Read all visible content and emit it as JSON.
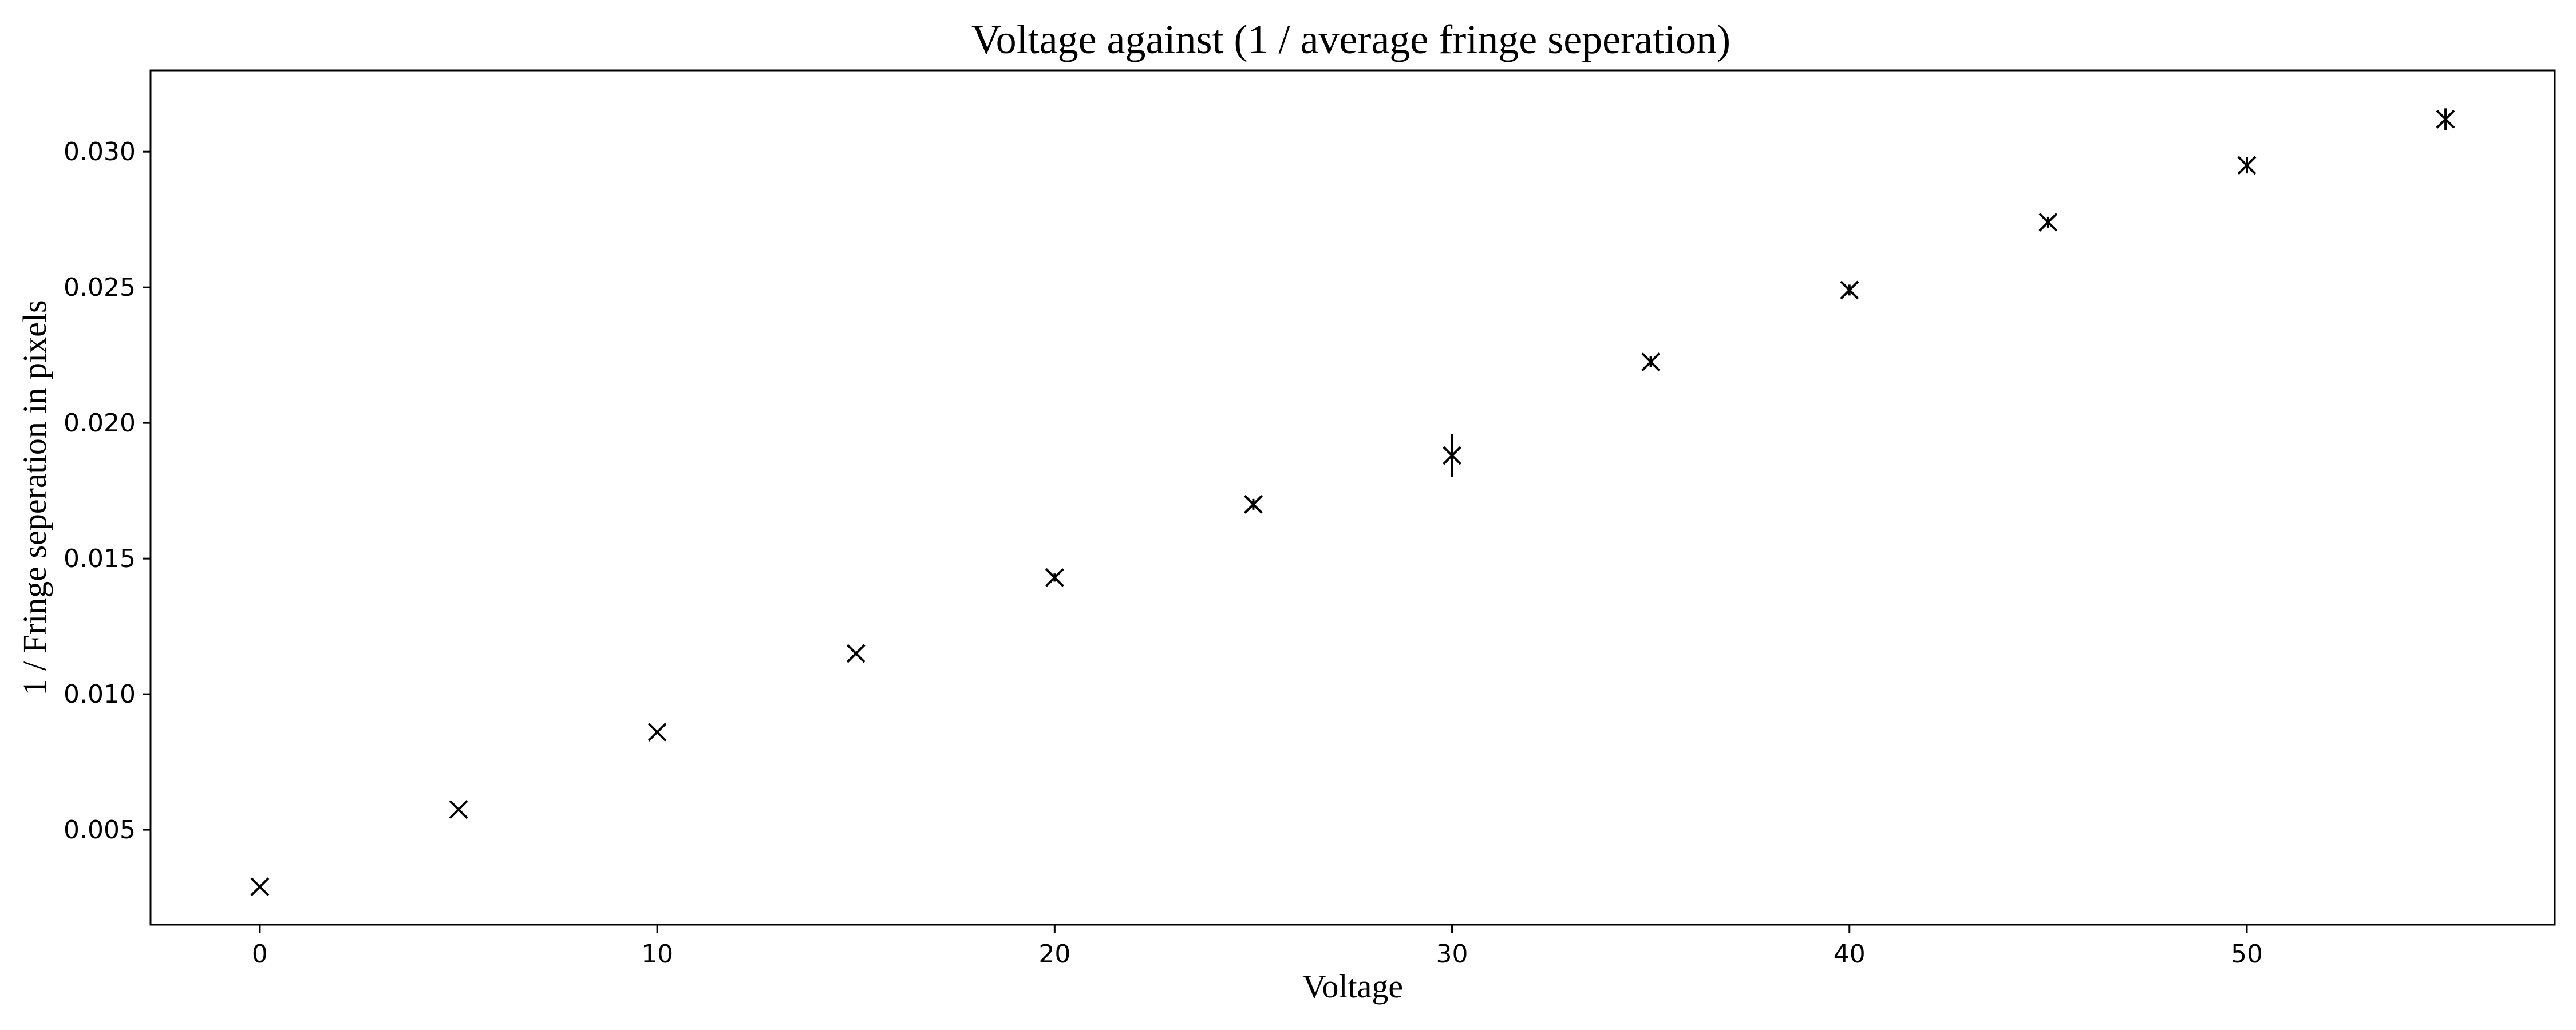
{
  "chart_data": {
    "type": "scatter",
    "title": "Voltage against (1 / average fringe seperation)",
    "xlabel": "Voltage",
    "ylabel": "1 / Fringe seperation in pixels",
    "xlim": [
      -2.75,
      57.75
    ],
    "ylim": [
      0.0015,
      0.033
    ],
    "xticks": [
      0,
      10,
      20,
      30,
      40,
      50
    ],
    "xtick_labels": [
      "0",
      "10",
      "20",
      "30",
      "40",
      "50"
    ],
    "yticks": [
      0.005,
      0.01,
      0.015,
      0.02,
      0.025,
      0.03
    ],
    "ytick_labels": [
      "0.005",
      "0.010",
      "0.015",
      "0.020",
      "0.025",
      "0.030"
    ],
    "grid": false,
    "marker": "x",
    "color": "#000000",
    "points": [
      {
        "x": 0,
        "y": 0.0029,
        "yerr": 5e-05
      },
      {
        "x": 5,
        "y": 0.00575,
        "yerr": 5e-05
      },
      {
        "x": 10,
        "y": 0.0086,
        "yerr": 5e-05
      },
      {
        "x": 15,
        "y": 0.0115,
        "yerr": 6e-05
      },
      {
        "x": 20,
        "y": 0.0143,
        "yerr": 0.00015
      },
      {
        "x": 25,
        "y": 0.017,
        "yerr": 0.0002
      },
      {
        "x": 30,
        "y": 0.0188,
        "yerr": 0.0008
      },
      {
        "x": 35,
        "y": 0.02225,
        "yerr": 0.0002
      },
      {
        "x": 40,
        "y": 0.0249,
        "yerr": 0.0002
      },
      {
        "x": 45,
        "y": 0.0274,
        "yerr": 0.0002
      },
      {
        "x": 50,
        "y": 0.0295,
        "yerr": 0.0003
      },
      {
        "x": 55,
        "y": 0.0312,
        "yerr": 0.0004
      }
    ]
  }
}
